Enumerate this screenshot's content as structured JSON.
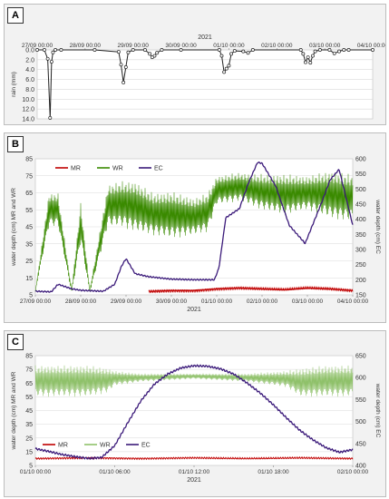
{
  "colors": {
    "rain": "#222222",
    "MR": "#c00000",
    "WR": "#3a8a00",
    "WR_light": "#8fc16a",
    "EC": "#3b1a7a",
    "panel_bg": "#f2f2f2",
    "grid": "#d9d9d9"
  },
  "chart_data": [
    {
      "panel": "A",
      "type": "line",
      "title": "",
      "year_label": "2021",
      "xlabel": "",
      "ylabel": "rain (mm)",
      "x_ticks": [
        "27/09 00:00",
        "28/09 00:00",
        "29/09 00:00",
        "30/09 00:00",
        "01/10 00:00",
        "02/10 00:00",
        "03/10 00:00",
        "04/10 00:00"
      ],
      "xlim_days": [
        0,
        7
      ],
      "ylim": [
        0,
        14
      ],
      "y_inverted": true,
      "y_ticks": [
        "0.0",
        "2.0",
        "4.0",
        "6.0",
        "8.0",
        "10.0",
        "12.0",
        "14.0"
      ],
      "series": [
        {
          "key": "rain",
          "x_days": [
            0,
            0.15,
            0.22,
            0.27,
            0.3,
            0.33,
            0.38,
            0.5,
            1.2,
            1.7,
            1.75,
            1.8,
            1.85,
            1.9,
            2.0,
            2.25,
            2.35,
            2.4,
            2.45,
            2.5,
            2.6,
            3.0,
            3.8,
            3.85,
            3.9,
            3.95,
            4.0,
            4.05,
            4.12,
            4.3,
            4.4,
            4.5,
            5.5,
            5.55,
            5.6,
            5.65,
            5.7,
            5.75,
            5.8,
            5.9,
            6.1,
            6.2,
            6.3,
            6.4,
            6.5,
            7.0
          ],
          "y_mm": [
            0,
            0,
            1.8,
            13.8,
            2.4,
            0.5,
            0,
            0,
            0,
            0.4,
            3.0,
            6.6,
            3.5,
            0.5,
            0,
            0,
            0.8,
            1.5,
            1.2,
            0.6,
            0,
            0,
            0,
            1.2,
            4.5,
            3.8,
            3.2,
            0.8,
            0.2,
            0.3,
            0.6,
            0,
            0,
            0.8,
            2.5,
            1.5,
            2.6,
            1.2,
            0.3,
            0,
            0,
            0.7,
            0.3,
            0,
            0,
            0
          ]
        }
      ]
    },
    {
      "panel": "B",
      "type": "line",
      "title": "",
      "xlabel": "2021",
      "ylabel": "water depth (cm) MR and WR",
      "y2label": "water depth (cm) EC",
      "x_ticks": [
        "27/09 00:00",
        "28/09 00:00",
        "29/09 00:00",
        "30/09 00:00",
        "01/10 00:00",
        "02/10 00:00",
        "03/10 00:00",
        "04/10 00:00"
      ],
      "xlim_days": [
        0,
        7
      ],
      "ylim": [
        5,
        85
      ],
      "y_ticks": [
        5,
        15,
        25,
        35,
        45,
        55,
        65,
        75,
        85
      ],
      "y2lim": [
        150,
        600
      ],
      "y2_ticks": [
        150,
        200,
        250,
        300,
        350,
        400,
        450,
        500,
        550,
        600
      ],
      "legend": "top",
      "series": [
        {
          "name": "MR",
          "key": "MR",
          "axis": "left",
          "x_days": [
            2.5,
            3.0,
            3.5,
            4.0,
            4.5,
            5.0,
            5.5,
            6.0,
            6.5,
            7.0
          ],
          "y": [
            7,
            7.5,
            7.5,
            8.5,
            9,
            8.5,
            8,
            9,
            8.5,
            7.5
          ]
        },
        {
          "name": "WR",
          "key": "WR",
          "axis": "left",
          "render": "band",
          "x_days": [
            0,
            0.3,
            0.5,
            0.8,
            1.0,
            1.2,
            1.6,
            1.9,
            2.2,
            2.6,
            3.0,
            3.5,
            3.8,
            4.0,
            4.5,
            5.0,
            5.5,
            6.0,
            6.5,
            7.0
          ],
          "y_min": [
            7,
            45,
            45,
            6,
            35,
            6,
            45,
            45,
            42,
            40,
            38,
            40,
            42,
            58,
            60,
            55,
            52,
            55,
            50,
            48
          ],
          "y_max": [
            7,
            65,
            65,
            8,
            60,
            8,
            70,
            72,
            72,
            65,
            66,
            62,
            65,
            75,
            77,
            76,
            76,
            75,
            78,
            76
          ]
        },
        {
          "name": "EC",
          "key": "EC",
          "axis": "right",
          "x_days": [
            0,
            0.35,
            0.5,
            0.8,
            1.0,
            1.5,
            1.75,
            1.9,
            2.0,
            2.2,
            2.5,
            3.0,
            3.5,
            3.95,
            4.05,
            4.2,
            4.5,
            4.7,
            4.9,
            5.0,
            5.3,
            5.6,
            5.95,
            6.3,
            6.5,
            6.7,
            7.0
          ],
          "y": [
            162,
            160,
            185,
            170,
            165,
            162,
            185,
            245,
            270,
            220,
            210,
            202,
            200,
            200,
            240,
            405,
            435,
            520,
            588,
            585,
            510,
            380,
            320,
            450,
            530,
            565,
            380
          ]
        }
      ]
    },
    {
      "panel": "C",
      "type": "line",
      "title": "",
      "xlabel": "2021",
      "ylabel": "water depth (cm) MR and WR",
      "y2label": "water depth (cm) EC",
      "x_ticks": [
        "01/10 00:00",
        "01/10 06:00",
        "01/10 12:00",
        "01/10 18:00",
        "02/10 00:00"
      ],
      "xlim_hours": [
        0,
        24
      ],
      "ylim": [
        5,
        85
      ],
      "y_ticks": [
        5,
        15,
        25,
        35,
        45,
        55,
        65,
        75,
        85
      ],
      "y2lim": [
        400,
        650
      ],
      "y2_ticks": [
        400,
        450,
        500,
        550,
        600,
        650
      ],
      "legend": "bottom-left",
      "series": [
        {
          "name": "MR",
          "key": "MR",
          "axis": "left",
          "x_hours": [
            0,
            4,
            8,
            12,
            16,
            20,
            24
          ],
          "y": [
            10,
            10.5,
            10,
            10.5,
            10,
            10.5,
            10
          ]
        },
        {
          "name": "WR",
          "key": "WR_light",
          "axis": "left",
          "render": "band",
          "x_hours": [
            0,
            2,
            4,
            5.5,
            6,
            8,
            12,
            16,
            19,
            20,
            22,
            24
          ],
          "y_min": [
            55,
            55,
            55,
            58,
            63,
            66,
            68,
            66,
            62,
            55,
            55,
            55
          ],
          "y_max": [
            78,
            78,
            78,
            76,
            74,
            72,
            72,
            72,
            74,
            76,
            78,
            78
          ]
        },
        {
          "name": "EC",
          "key": "EC",
          "axis": "right",
          "x_hours": [
            0,
            1,
            2,
            3,
            4,
            5,
            6,
            7,
            8,
            9,
            10,
            11,
            12,
            13,
            14,
            15,
            16,
            17,
            18,
            19,
            20,
            21,
            22,
            23,
            24
          ],
          "y": [
            438,
            432,
            425,
            420,
            416,
            418,
            445,
            498,
            548,
            585,
            608,
            622,
            627,
            626,
            620,
            608,
            588,
            565,
            538,
            508,
            480,
            458,
            440,
            430,
            436
          ]
        }
      ]
    }
  ]
}
